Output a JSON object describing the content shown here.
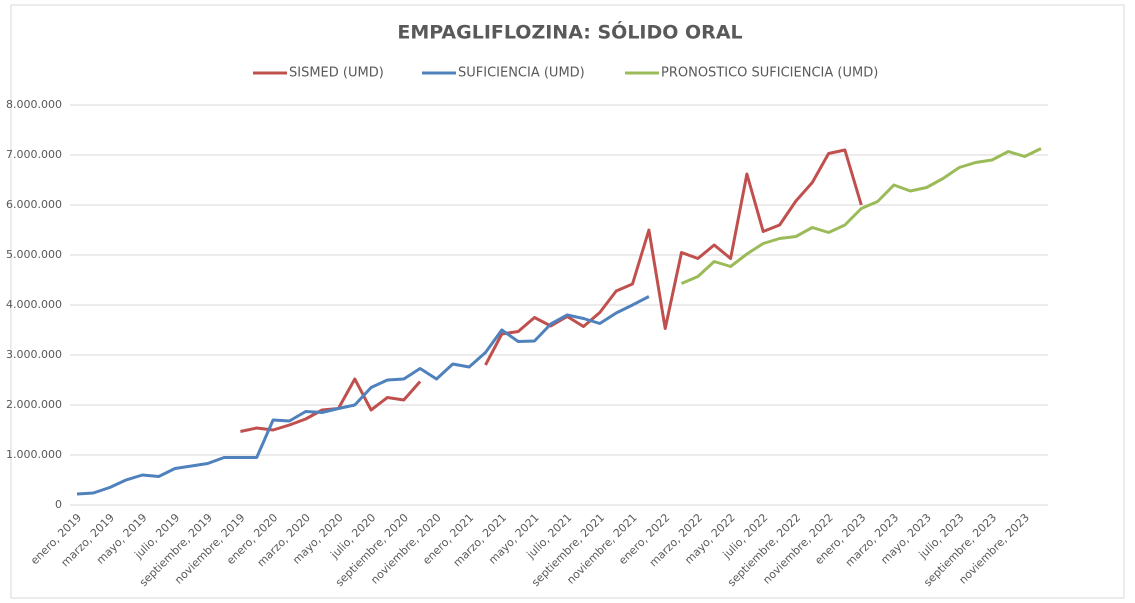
{
  "chart_data": {
    "type": "line",
    "title": "EMPAGLIFLOZINA: SÓLIDO ORAL",
    "categories": [
      "enero, 2019",
      null,
      "marzo, 2019",
      null,
      "mayo, 2019",
      null,
      "julio, 2019",
      null,
      "septiembre, 2019",
      null,
      "noviembre, 2019",
      null,
      "enero, 2020",
      null,
      "marzo, 2020",
      null,
      "mayo, 2020",
      null,
      "julio, 2020",
      null,
      "septiembre, 2020",
      null,
      "noviembre, 2020",
      null,
      "enero, 2021",
      null,
      "marzo, 2021",
      null,
      "mayo, 2021",
      null,
      "julio, 2021",
      null,
      "septiembre, 2021",
      null,
      "noviembre, 2021",
      null,
      "enero, 2022",
      null,
      "marzo, 2022",
      null,
      "mayo, 2022",
      null,
      "julio, 2022",
      null,
      "septiembre, 2022",
      null,
      "noviembre, 2022",
      null,
      "enero, 2023",
      null,
      "marzo, 2023",
      null,
      "mayo, 2023",
      null,
      "julio, 2023",
      null,
      "septiembre, 2023",
      null,
      "noviembre, 2023",
      null
    ],
    "series": [
      {
        "name": "SISMED (UMD)",
        "color": "#c0504d",
        "values": [
          null,
          null,
          null,
          null,
          null,
          null,
          null,
          null,
          null,
          null,
          1470000,
          1540000,
          1500000,
          1600000,
          1720000,
          1900000,
          1930000,
          2520000,
          1900000,
          2150000,
          2100000,
          2470000,
          null,
          null,
          null,
          2800000,
          3420000,
          3470000,
          3750000,
          3580000,
          3770000,
          3570000,
          3850000,
          4280000,
          4420000,
          5500000,
          3530000,
          5050000,
          4930000,
          5200000,
          4930000,
          6620000,
          5470000,
          5600000,
          6080000,
          6450000,
          7030000,
          7100000,
          6000000,
          null,
          null,
          null,
          null,
          null,
          null,
          null,
          null,
          null,
          null,
          null
        ]
      },
      {
        "name": "SUFICIENCIA (UMD)",
        "color": "#4f81bd",
        "values": [
          220000,
          240000,
          350000,
          500000,
          600000,
          570000,
          730000,
          780000,
          830000,
          950000,
          950000,
          950000,
          1700000,
          1680000,
          1870000,
          1850000,
          1930000,
          2000000,
          2350000,
          2500000,
          2520000,
          2730000,
          2520000,
          2820000,
          2760000,
          3050000,
          3500000,
          3270000,
          3280000,
          3620000,
          3800000,
          3730000,
          3630000,
          3840000,
          4000000,
          4170000,
          null,
          null,
          null,
          null,
          null,
          null,
          null,
          null,
          null,
          null,
          null,
          null,
          null,
          null,
          null,
          null,
          null,
          null,
          null,
          null,
          null,
          null,
          null,
          null
        ]
      },
      {
        "name": "PRONOSTICO SUFICIENCIA (UMD)",
        "color": "#9bbb59",
        "values": [
          null,
          null,
          null,
          null,
          null,
          null,
          null,
          null,
          null,
          null,
          null,
          null,
          null,
          null,
          null,
          null,
          null,
          null,
          null,
          null,
          null,
          null,
          null,
          null,
          null,
          null,
          null,
          null,
          null,
          null,
          null,
          null,
          null,
          null,
          null,
          null,
          null,
          4430000,
          4570000,
          4870000,
          4770000,
          5020000,
          5230000,
          5330000,
          5370000,
          5550000,
          5450000,
          5600000,
          5930000,
          6070000,
          6400000,
          6280000,
          6350000,
          6530000,
          6750000,
          6850000,
          6900000,
          7070000,
          6970000,
          7130000
        ]
      }
    ],
    "ylim": [
      0,
      8000000
    ],
    "yticks": [
      0,
      {
        "value": 1000000,
        "label": "1.000.000"
      },
      {
        "value": 2000000,
        "label": "2.000.000"
      },
      {
        "value": 3000000,
        "label": "3.000.000"
      },
      {
        "value": 4000000,
        "label": "4.000.000"
      },
      {
        "value": 5000000,
        "label": "5.000.000"
      },
      {
        "value": 6000000,
        "label": "6.000.000"
      },
      {
        "value": 7000000,
        "label": "7.000.000"
      },
      {
        "value": 8000000,
        "label": "8.000.000"
      }
    ],
    "grid": true,
    "legend": "top"
  }
}
